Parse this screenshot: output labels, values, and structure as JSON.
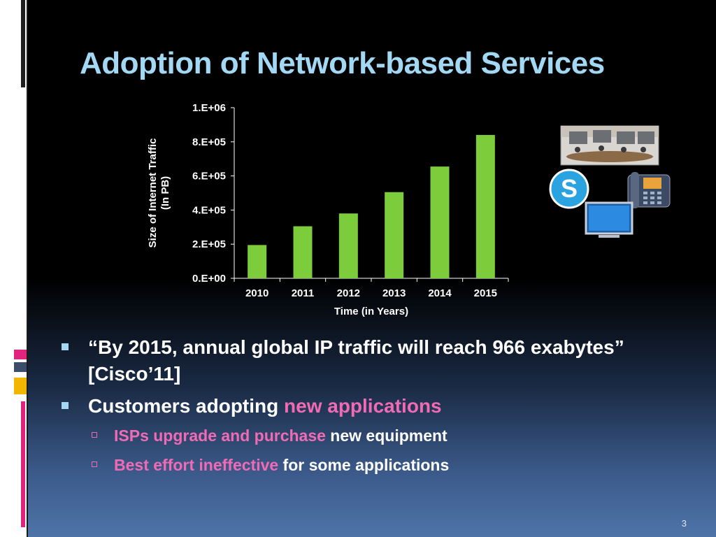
{
  "slide": {
    "title": "Adoption of Network-based Services",
    "number": "3"
  },
  "chart_data": {
    "type": "bar",
    "categories": [
      "2010",
      "2011",
      "2012",
      "2013",
      "2014",
      "2015"
    ],
    "values": [
      195000,
      305000,
      380000,
      505000,
      655000,
      840000
    ],
    "ylim": [
      0,
      1000000
    ],
    "yticks": [
      0,
      200000,
      400000,
      600000,
      800000,
      1000000
    ],
    "ytick_labels": [
      "0.E+00",
      "2.E+05",
      "4.E+05",
      "6.E+05",
      "8.E+05",
      "1.E+06"
    ],
    "ylabel_line1": "Size of Internet Traffic",
    "ylabel_line2": "(In PB)",
    "xlabel": "Time (in Years)",
    "bar_color": "#7ccc3c",
    "grid": false,
    "legend": "none"
  },
  "bullets": [
    {
      "text": "“By 2015, annual global IP traffic will reach 966 exabytes” [Cisco’11]"
    },
    {
      "text_plain": "Customers adopting ",
      "text_pink": "new applications",
      "sub": [
        {
          "pink": "ISPs upgrade and purchase",
          "plain": " new equipment"
        },
        {
          "pink": "Best effort ineffective",
          "plain": " for some applications"
        }
      ]
    }
  ],
  "icons": [
    "video-conference-icon",
    "skype-icon",
    "ip-phone-icon",
    "monitor-icon"
  ],
  "colors": {
    "title": "#a3d8f4",
    "accent_pink": "#f06bb4",
    "bullet_marker": "#a3d8f4"
  }
}
